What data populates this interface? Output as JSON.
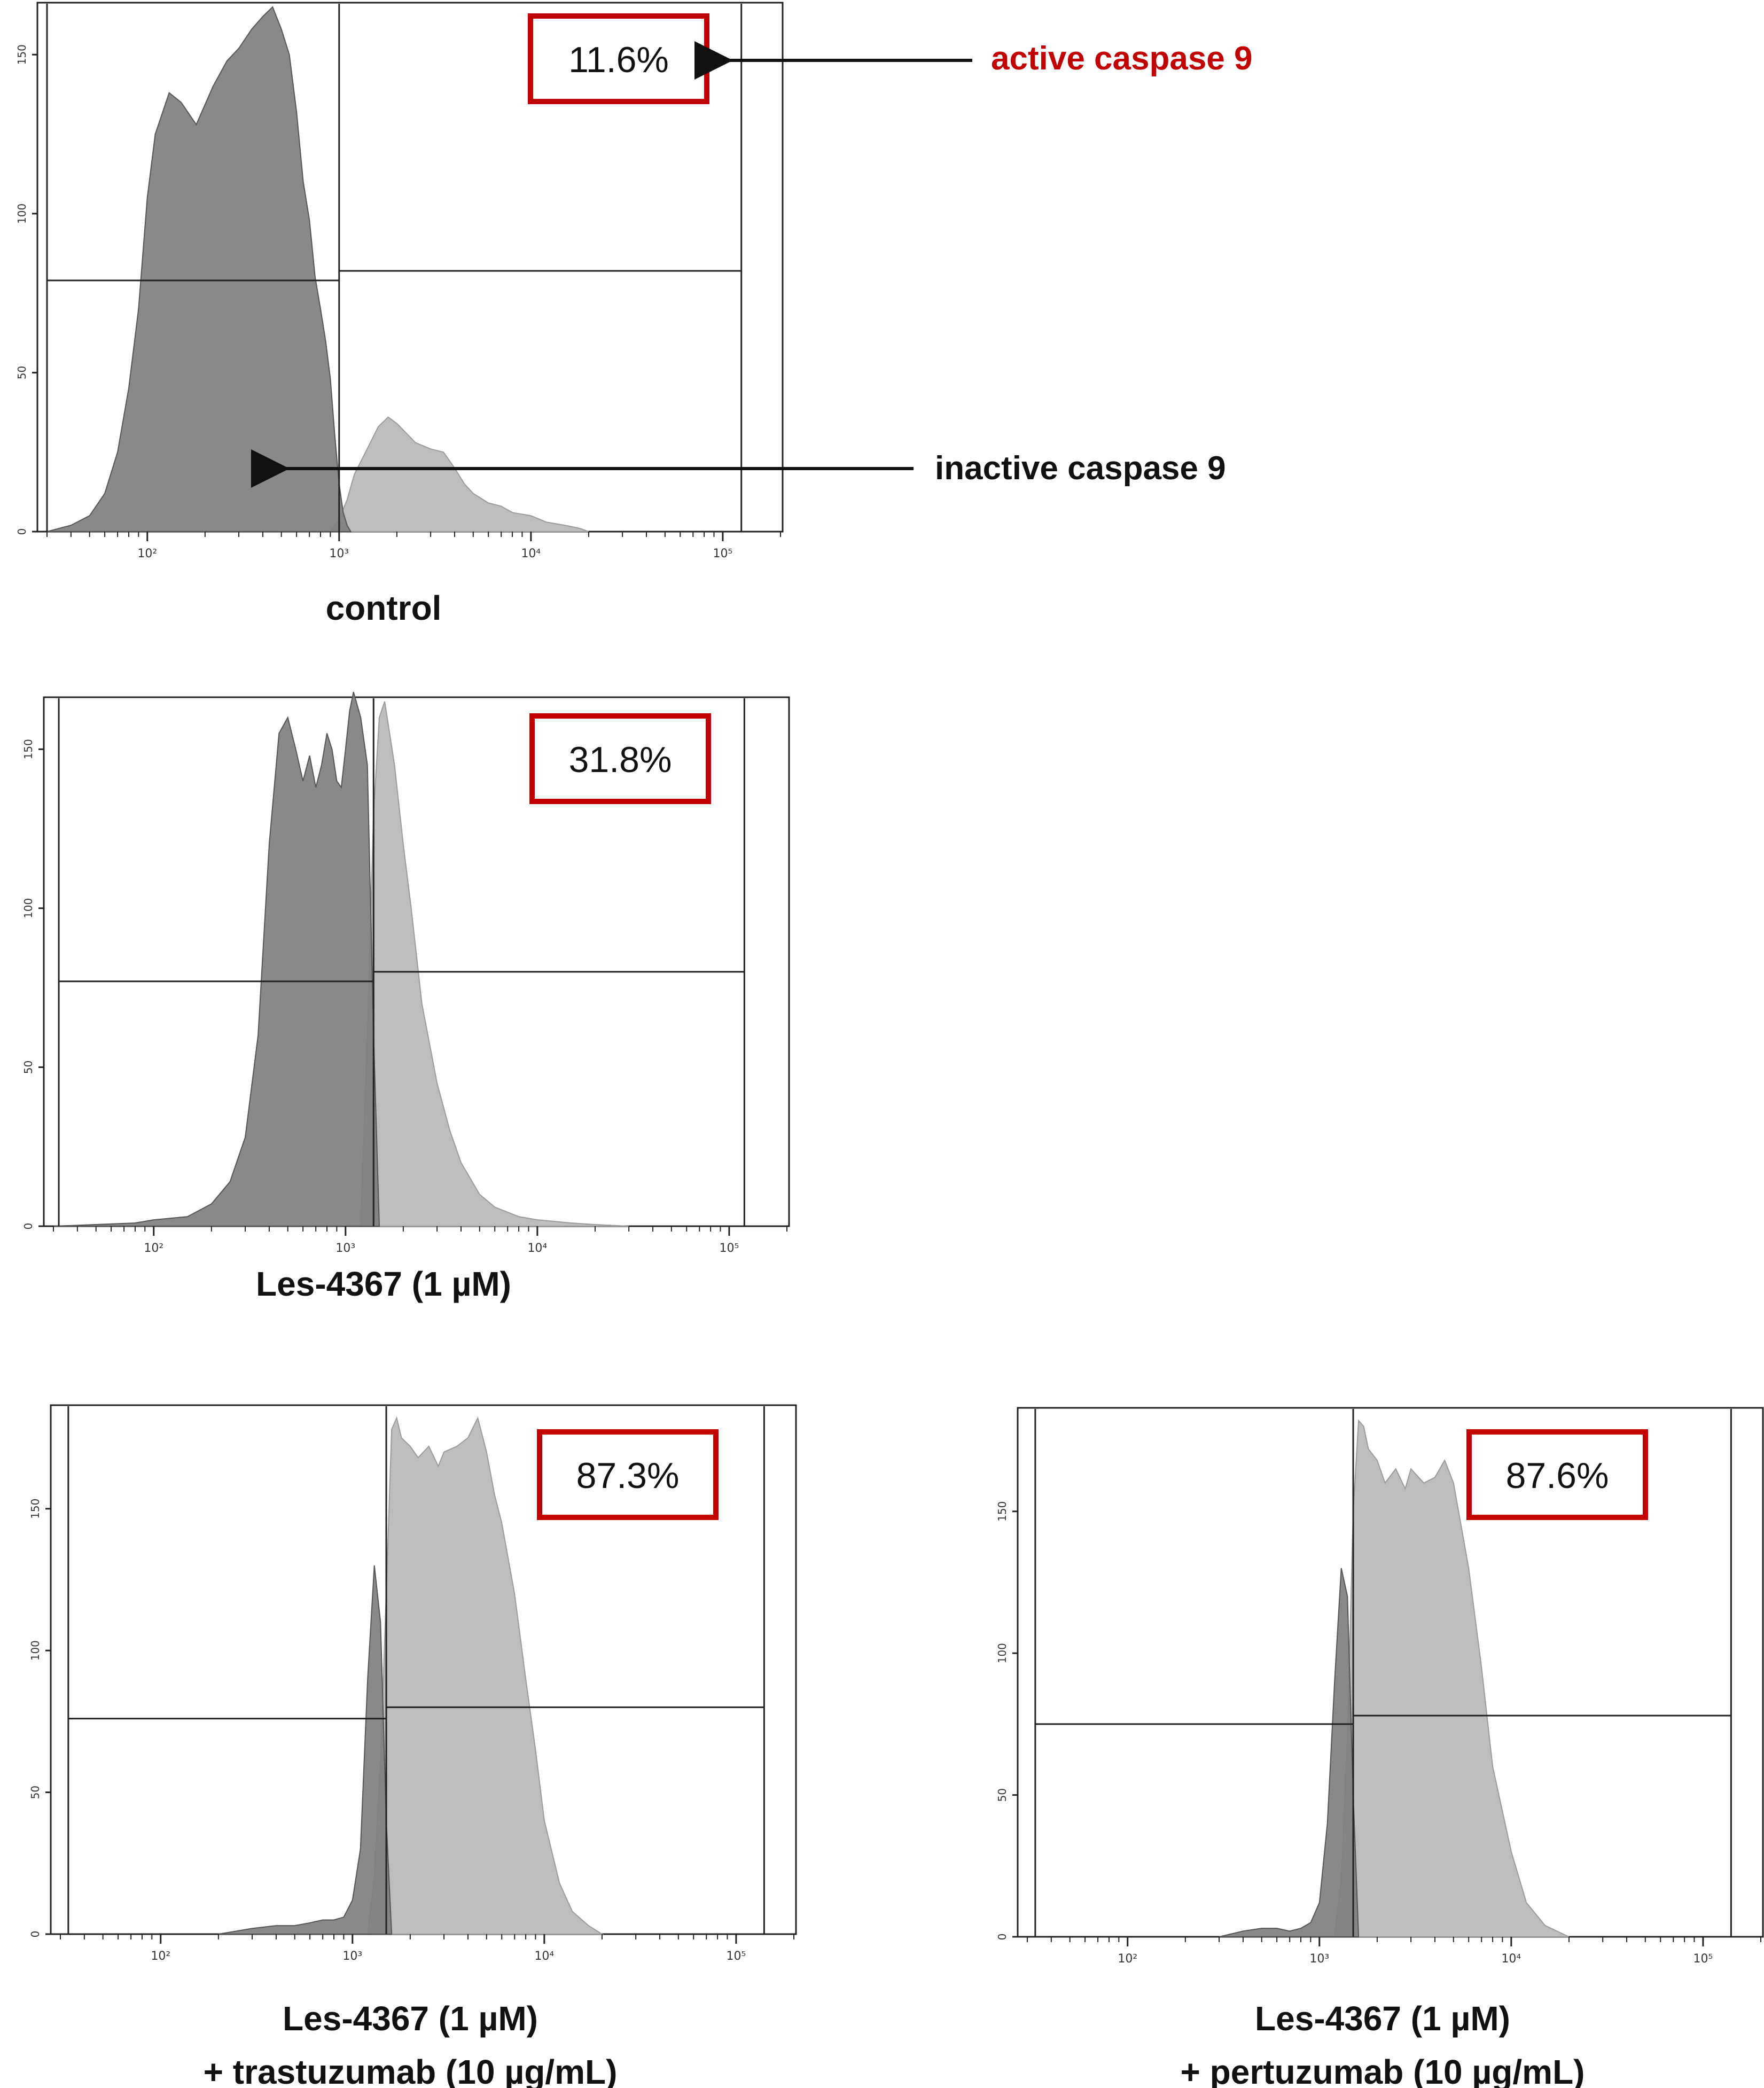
{
  "colors": {
    "inactive_fill": "#7f7f7f",
    "active_fill": "#bdbdbd",
    "overlap_fill": "#6a6a6a",
    "frame": "#222222",
    "gate": "#222222",
    "pct_box": "#c00000",
    "annotation_red": "#c00000",
    "annotation_black": "#111111"
  },
  "annotations": {
    "active_label": "active caspase 9",
    "inactive_label": "inactive caspase 9"
  },
  "chart_data": [
    {
      "type": "area",
      "caption_lines": [
        "control"
      ],
      "active_percent": "11.6%",
      "x_scale": "log",
      "xlim": [
        30,
        200000
      ],
      "ylim": [
        0,
        165
      ],
      "x_ticks": [
        {
          "v": 100,
          "label": "10²"
        },
        {
          "v": 1000,
          "label": "10³"
        },
        {
          "v": 10000,
          "label": "10⁴"
        },
        {
          "v": 100000,
          "label": "10⁵"
        }
      ],
      "y_ticks": [
        0,
        50,
        100,
        150
      ],
      "gate_divider": 1000,
      "gate_left_edge": 30,
      "gate_right_edge": 125000,
      "gate_left_y": 79,
      "gate_right_y": 82,
      "series": [
        {
          "name": "inactive caspase 9",
          "x": [
            30,
            40,
            50,
            60,
            70,
            80,
            90,
            100,
            110,
            130,
            150,
            180,
            220,
            260,
            300,
            350,
            400,
            450,
            500,
            550,
            600,
            650,
            700,
            750,
            800,
            850,
            900,
            950,
            1000,
            1050,
            1100,
            1150
          ],
          "y": [
            0,
            2,
            5,
            12,
            25,
            45,
            70,
            105,
            125,
            138,
            135,
            128,
            140,
            148,
            152,
            158,
            162,
            165,
            158,
            150,
            132,
            110,
            98,
            80,
            70,
            60,
            48,
            30,
            15,
            6,
            2,
            0
          ]
        },
        {
          "name": "active caspase 9",
          "x": [
            900,
            1000,
            1100,
            1200,
            1400,
            1600,
            1800,
            2000,
            2500,
            3000,
            3500,
            4000,
            4500,
            5000,
            6000,
            7000,
            8000,
            10000,
            12000,
            15000,
            18000,
            20000
          ],
          "y": [
            0,
            4,
            10,
            18,
            26,
            33,
            36,
            34,
            28,
            26,
            25,
            20,
            15,
            12,
            9,
            8,
            6,
            5,
            3,
            2,
            1,
            0
          ]
        }
      ]
    },
    {
      "type": "area",
      "caption_lines": [
        "Les-4367 (1 µM)"
      ],
      "active_percent": "31.8%",
      "x_scale": "log",
      "xlim": [
        30,
        200000
      ],
      "ylim": [
        0,
        165
      ],
      "x_ticks": [
        {
          "v": 100,
          "label": "10²"
        },
        {
          "v": 1000,
          "label": "10³"
        },
        {
          "v": 10000,
          "label": "10⁴"
        },
        {
          "v": 100000,
          "label": "10⁵"
        }
      ],
      "y_ticks": [
        0,
        50,
        100,
        150
      ],
      "gate_divider": 1400,
      "gate_left_edge": 32,
      "gate_right_edge": 120000,
      "gate_left_y": 77,
      "gate_right_y": 80,
      "series": [
        {
          "name": "inactive",
          "x": [
            30,
            80,
            100,
            150,
            200,
            250,
            300,
            350,
            400,
            450,
            500,
            550,
            600,
            650,
            700,
            750,
            800,
            850,
            900,
            950,
            1000,
            1050,
            1100,
            1200,
            1300,
            1400,
            1500
          ],
          "y": [
            0,
            1,
            2,
            3,
            7,
            14,
            28,
            60,
            120,
            155,
            160,
            150,
            140,
            148,
            138,
            145,
            155,
            150,
            140,
            138,
            150,
            162,
            168,
            160,
            145,
            60,
            0
          ]
        },
        {
          "name": "active",
          "x": [
            1200,
            1300,
            1400,
            1500,
            1600,
            1800,
            2000,
            2200,
            2500,
            3000,
            3500,
            4000,
            5000,
            6000,
            8000,
            10000,
            15000,
            20000,
            30000
          ],
          "y": [
            0,
            60,
            130,
            160,
            165,
            145,
            120,
            100,
            70,
            45,
            30,
            20,
            10,
            6,
            3,
            2,
            1,
            0.5,
            0
          ]
        }
      ]
    },
    {
      "type": "area",
      "caption_lines": [
        "Les-4367 (1 µM)",
        "+ trastuzumab (10 µg/mL)"
      ],
      "active_percent": "87.3%",
      "x_scale": "log",
      "xlim": [
        30,
        200000
      ],
      "ylim": [
        0,
        185
      ],
      "x_ticks": [
        {
          "v": 100,
          "label": "10²"
        },
        {
          "v": 1000,
          "label": "10³"
        },
        {
          "v": 10000,
          "label": "10⁴"
        },
        {
          "v": 100000,
          "label": "10⁵"
        }
      ],
      "y_ticks": [
        0,
        50,
        100,
        150
      ],
      "gate_divider": 1500,
      "gate_left_edge": 33,
      "gate_right_edge": 140000,
      "gate_left_y": 76,
      "gate_right_y": 80,
      "series": [
        {
          "name": "inactive",
          "x": [
            200,
            300,
            400,
            500,
            600,
            700,
            800,
            900,
            1000,
            1100,
            1200,
            1300,
            1400,
            1500,
            1600
          ],
          "y": [
            0,
            2,
            3,
            3,
            4,
            5,
            5,
            6,
            12,
            30,
            90,
            130,
            110,
            40,
            0
          ]
        },
        {
          "name": "active",
          "x": [
            1200,
            1300,
            1400,
            1500,
            1600,
            1700,
            1800,
            2000,
            2200,
            2500,
            2800,
            3000,
            3500,
            4000,
            4500,
            5000,
            5500,
            6000,
            7000,
            8000,
            9000,
            10000,
            12000,
            14000,
            17000,
            20000
          ],
          "y": [
            0,
            20,
            60,
            120,
            178,
            182,
            175,
            172,
            168,
            172,
            165,
            170,
            172,
            175,
            182,
            170,
            155,
            145,
            120,
            90,
            65,
            40,
            18,
            8,
            3,
            0
          ]
        }
      ]
    },
    {
      "type": "area",
      "caption_lines": [
        "Les-4367 (1 µM)",
        "+ pertuzumab (10 µg/mL)"
      ],
      "active_percent": "87.6%",
      "x_scale": "log",
      "xlim": [
        30,
        200000
      ],
      "ylim": [
        0,
        185
      ],
      "x_ticks": [
        {
          "v": 100,
          "label": "10²"
        },
        {
          "v": 1000,
          "label": "10³"
        },
        {
          "v": 10000,
          "label": "10⁴"
        },
        {
          "v": 100000,
          "label": "10⁵"
        }
      ],
      "y_ticks": [
        0,
        50,
        100,
        150
      ],
      "gate_divider": 1500,
      "gate_left_edge": 33,
      "gate_right_edge": 140000,
      "gate_left_y": 75,
      "gate_right_y": 78,
      "series": [
        {
          "name": "inactive",
          "x": [
            300,
            400,
            500,
            600,
            700,
            800,
            900,
            1000,
            1100,
            1200,
            1300,
            1400,
            1500,
            1600
          ],
          "y": [
            0,
            2,
            3,
            3,
            2,
            3,
            5,
            12,
            40,
            90,
            130,
            120,
            50,
            0
          ]
        },
        {
          "name": "active",
          "x": [
            1200,
            1300,
            1400,
            1500,
            1600,
            1700,
            1800,
            2000,
            2200,
            2500,
            2800,
            3000,
            3500,
            4000,
            4500,
            5000,
            6000,
            7000,
            8000,
            10000,
            12000,
            15000,
            20000
          ],
          "y": [
            0,
            20,
            70,
            150,
            182,
            180,
            172,
            168,
            160,
            165,
            158,
            165,
            160,
            162,
            168,
            160,
            130,
            95,
            60,
            30,
            12,
            4,
            0
          ]
        }
      ]
    }
  ]
}
